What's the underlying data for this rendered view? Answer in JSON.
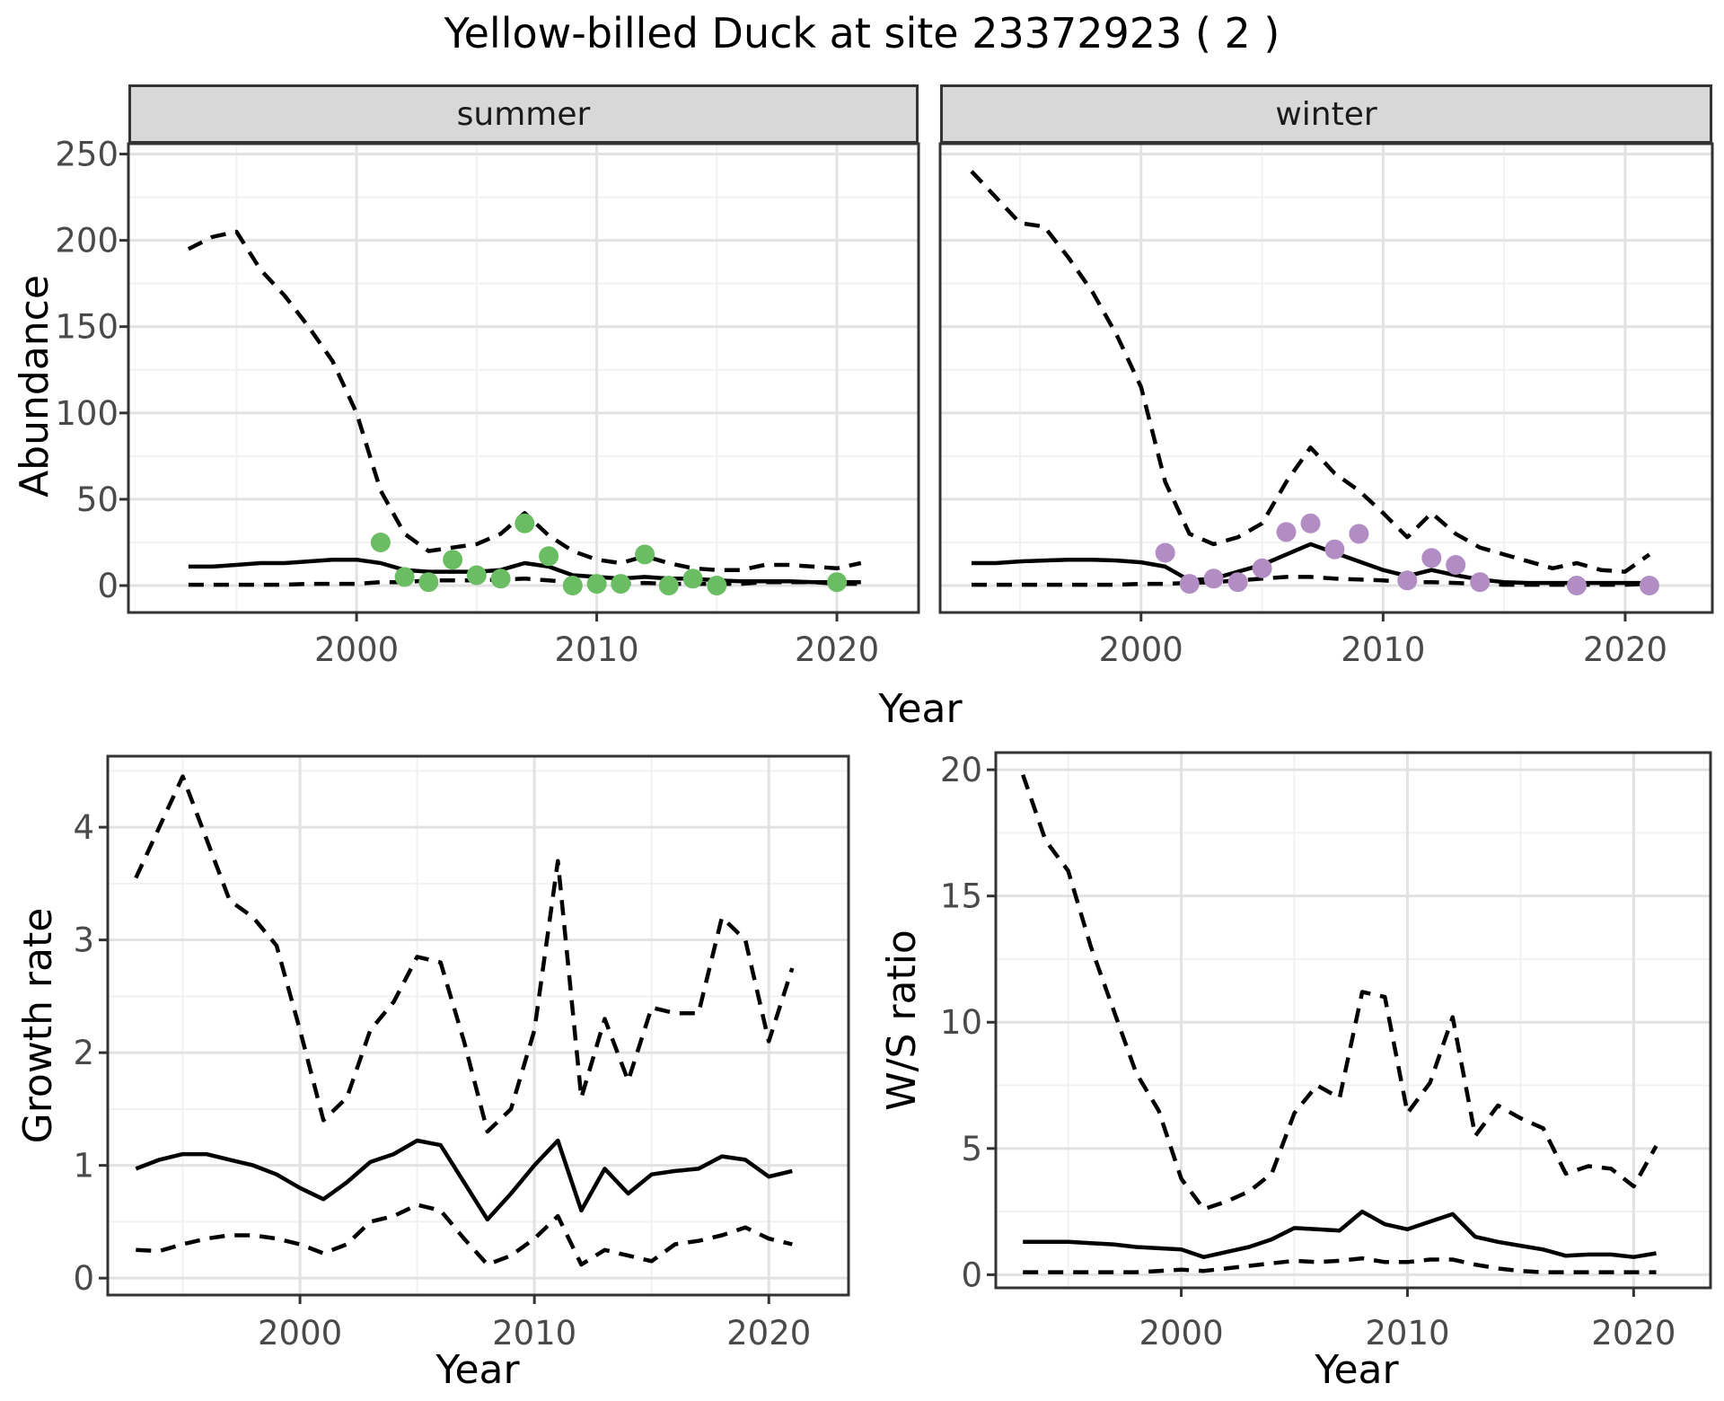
{
  "title": "Yellow-billed Duck at site 23372923 ( 2 )",
  "facets": [
    "summer",
    "winter"
  ],
  "axis_titles": {
    "abundance": "Abundance",
    "year_top": "Year",
    "growth_rate": "Growth rate",
    "year_bottom_left": "Year",
    "ws_ratio": "W/S ratio",
    "year_bottom_right": "Year"
  },
  "colors": {
    "summer_points": "#6bbd63",
    "winter_points": "#b28dc3",
    "line": "#000000",
    "grid_major": "#e2e2e2",
    "grid_minor": "#f1f1f1",
    "panel_border": "#333333",
    "strip_bg": "#d8d8d8",
    "tick_text": "#4a4a4a"
  },
  "chart_data": [
    {
      "id": "abundance_summer",
      "type": "line",
      "title": "summer",
      "xlabel": "Year",
      "ylabel": "Abundance",
      "x_ticks": [
        2000,
        2010,
        2020
      ],
      "x_minor": [
        1995,
        2005,
        2015
      ],
      "y_ticks": [
        0,
        50,
        100,
        150,
        200,
        250
      ],
      "y_minor": [
        25,
        75,
        125,
        175,
        225
      ],
      "xlim": [
        1990.5,
        2023.4
      ],
      "ylim": [
        -15.6,
        256
      ],
      "years": [
        1993,
        1994,
        1995,
        1996,
        1997,
        1998,
        1999,
        2000,
        2001,
        2002,
        2003,
        2004,
        2005,
        2006,
        2007,
        2008,
        2009,
        2010,
        2011,
        2012,
        2013,
        2014,
        2015,
        2016,
        2017,
        2018,
        2019,
        2020,
        2021
      ],
      "series": [
        {
          "name": "upper_ci",
          "style": "dashed",
          "values": [
            195,
            202,
            205,
            183,
            168,
            150,
            130,
            100,
            55,
            30,
            20,
            22,
            24,
            30,
            42,
            29,
            20,
            15,
            13,
            17,
            13,
            10,
            9,
            9,
            12,
            12,
            11,
            10,
            13
          ]
        },
        {
          "name": "mean",
          "style": "solid",
          "values": [
            11,
            11,
            12,
            13,
            13,
            14,
            15,
            15,
            13,
            9,
            8,
            8,
            8,
            9,
            13,
            11,
            6,
            5,
            4,
            5,
            4,
            4,
            3,
            2.5,
            2.5,
            2.5,
            2,
            2,
            2
          ]
        },
        {
          "name": "lower_ci",
          "style": "dashed",
          "values": [
            0.5,
            0.5,
            0.5,
            0.5,
            0.5,
            1,
            1,
            1,
            2,
            2,
            3,
            3,
            3,
            3.5,
            4,
            3,
            2,
            1,
            1,
            1.5,
            1,
            1,
            1,
            1,
            2,
            2,
            2,
            1,
            1
          ]
        }
      ],
      "points": {
        "name": "observed_counts",
        "color_key": "summer_points",
        "years": [
          2001,
          2002,
          2003,
          2004,
          2005,
          2006,
          2007,
          2008,
          2009,
          2010,
          2011,
          2012,
          2013,
          2014,
          2015,
          2020
        ],
        "values": [
          25,
          5,
          2,
          15,
          6,
          4,
          36,
          17,
          0,
          1,
          1,
          18,
          0,
          4,
          0,
          2
        ]
      }
    },
    {
      "id": "abundance_winter",
      "type": "line",
      "title": "winter",
      "xlabel": "Year",
      "ylabel": "Abundance",
      "x_ticks": [
        2000,
        2010,
        2020
      ],
      "x_minor": [
        1995,
        2005,
        2015
      ],
      "y_ticks": [
        0,
        50,
        100,
        150,
        200,
        250
      ],
      "y_minor": [
        25,
        75,
        125,
        175,
        225
      ],
      "xlim": [
        1991.7,
        2023.6
      ],
      "ylim": [
        -15.6,
        256
      ],
      "years": [
        1993,
        1994,
        1995,
        1996,
        1997,
        1998,
        1999,
        2000,
        2001,
        2002,
        2003,
        2004,
        2005,
        2006,
        2007,
        2008,
        2009,
        2010,
        2011,
        2012,
        2013,
        2014,
        2015,
        2016,
        2017,
        2018,
        2019,
        2020,
        2021
      ],
      "series": [
        {
          "name": "upper_ci",
          "style": "dashed",
          "values": [
            240,
            225,
            210,
            208,
            190,
            170,
            145,
            115,
            60,
            30,
            24,
            28,
            36,
            60,
            80,
            65,
            55,
            42,
            28,
            42,
            30,
            22,
            18,
            14,
            10,
            13,
            9,
            8,
            18
          ]
        },
        {
          "name": "mean",
          "style": "solid",
          "values": [
            13,
            13,
            14,
            14.5,
            15,
            15,
            14.5,
            13.5,
            11,
            3,
            4,
            8,
            12,
            18,
            24,
            19,
            14,
            9,
            5.5,
            9,
            6,
            3.5,
            2,
            1.5,
            1.5,
            1.5,
            1.5,
            1.5,
            1.5
          ]
        },
        {
          "name": "lower_ci",
          "style": "dashed",
          "values": [
            0.5,
            0.5,
            0.5,
            0.5,
            0.5,
            0.5,
            0.5,
            1,
            1,
            1.5,
            2,
            3,
            4,
            5,
            5,
            4,
            3.5,
            3,
            2,
            2,
            1.5,
            1,
            0.5,
            0.5,
            0.5,
            0.5,
            0.5,
            0.5,
            1
          ]
        }
      ],
      "points": {
        "name": "observed_counts",
        "color_key": "winter_points",
        "years": [
          2001,
          2002,
          2003,
          2004,
          2005,
          2006,
          2007,
          2008,
          2009,
          2011,
          2012,
          2013,
          2014,
          2018,
          2021
        ],
        "values": [
          19,
          1,
          4,
          2,
          10,
          31,
          36,
          21,
          30,
          3,
          16,
          12,
          2,
          0,
          0
        ]
      }
    },
    {
      "id": "growth_rate",
      "type": "line",
      "title": "",
      "xlabel": "Year",
      "ylabel": "Growth rate",
      "x_ticks": [
        2000,
        2010,
        2020
      ],
      "x_minor": [
        1995,
        2005,
        2015
      ],
      "y_ticks": [
        0,
        1,
        2,
        3,
        4
      ],
      "y_minor": [
        0.5,
        1.5,
        2.5,
        3.5,
        4.5
      ],
      "xlim": [
        1991.8,
        2023.4
      ],
      "ylim": [
        -0.15,
        4.63
      ],
      "years": [
        1993,
        1994,
        1995,
        1996,
        1997,
        1998,
        1999,
        2000,
        2001,
        2002,
        2003,
        2004,
        2005,
        2006,
        2007,
        2008,
        2009,
        2010,
        2011,
        2012,
        2013,
        2014,
        2015,
        2016,
        2017,
        2018,
        2019,
        2020,
        2021
      ],
      "series": [
        {
          "name": "upper_ci",
          "style": "dashed",
          "values": [
            3.55,
            4.0,
            4.45,
            3.9,
            3.35,
            3.2,
            2.95,
            2.2,
            1.4,
            1.6,
            2.2,
            2.45,
            2.85,
            2.8,
            2.1,
            1.3,
            1.5,
            2.2,
            3.7,
            1.6,
            2.3,
            1.75,
            2.4,
            2.35,
            2.35,
            3.2,
            3.0,
            2.1,
            2.75
          ]
        },
        {
          "name": "mean",
          "style": "solid",
          "values": [
            0.97,
            1.05,
            1.1,
            1.1,
            1.05,
            1.0,
            0.92,
            0.8,
            0.7,
            0.85,
            1.03,
            1.1,
            1.22,
            1.18,
            0.85,
            0.52,
            0.75,
            1.0,
            1.22,
            0.6,
            0.97,
            0.75,
            0.92,
            0.95,
            0.97,
            1.08,
            1.05,
            0.9,
            0.95
          ]
        },
        {
          "name": "lower_ci",
          "style": "dashed",
          "values": [
            0.25,
            0.24,
            0.3,
            0.35,
            0.38,
            0.38,
            0.35,
            0.3,
            0.22,
            0.3,
            0.5,
            0.55,
            0.65,
            0.6,
            0.35,
            0.12,
            0.2,
            0.35,
            0.55,
            0.12,
            0.25,
            0.2,
            0.15,
            0.3,
            0.33,
            0.38,
            0.45,
            0.35,
            0.3
          ]
        }
      ]
    },
    {
      "id": "ws_ratio",
      "type": "line",
      "title": "",
      "xlabel": "Year",
      "ylabel": "W/S ratio",
      "x_ticks": [
        2000,
        2010,
        2020
      ],
      "x_minor": [
        1995,
        2005,
        2015
      ],
      "y_ticks": [
        0,
        5,
        10,
        15,
        20
      ],
      "y_minor": [
        2.5,
        7.5,
        12.5,
        17.5
      ],
      "xlim": [
        1991.8,
        2023.4
      ],
      "ylim": [
        -0.52,
        20.68
      ],
      "years": [
        1993,
        1994,
        1995,
        1996,
        1997,
        1998,
        1999,
        2000,
        2001,
        2002,
        2003,
        2004,
        2005,
        2006,
        2007,
        2008,
        2009,
        2010,
        2011,
        2012,
        2013,
        2014,
        2015,
        2016,
        2017,
        2018,
        2019,
        2020,
        2021
      ],
      "series": [
        {
          "name": "upper_ci",
          "style": "dashed",
          "values": [
            19.8,
            17.2,
            16.0,
            13.0,
            10.5,
            8.0,
            6.5,
            3.8,
            2.6,
            2.9,
            3.3,
            4.0,
            6.4,
            7.5,
            7.0,
            11.2,
            11.0,
            6.4,
            7.6,
            10.2,
            5.5,
            6.7,
            6.2,
            5.8,
            4.0,
            4.3,
            4.2,
            3.5,
            5.1
          ]
        },
        {
          "name": "mean",
          "style": "solid",
          "values": [
            1.3,
            1.3,
            1.3,
            1.25,
            1.2,
            1.1,
            1.05,
            1.0,
            0.7,
            0.9,
            1.1,
            1.4,
            1.85,
            1.8,
            1.75,
            2.5,
            2.0,
            1.8,
            2.1,
            2.4,
            1.5,
            1.3,
            1.15,
            1.0,
            0.75,
            0.8,
            0.8,
            0.7,
            0.85
          ]
        },
        {
          "name": "lower_ci",
          "style": "dashed",
          "values": [
            0.1,
            0.1,
            0.1,
            0.1,
            0.1,
            0.1,
            0.15,
            0.2,
            0.15,
            0.25,
            0.35,
            0.45,
            0.55,
            0.5,
            0.55,
            0.65,
            0.5,
            0.5,
            0.6,
            0.6,
            0.4,
            0.25,
            0.15,
            0.1,
            0.1,
            0.1,
            0.1,
            0.1,
            0.1
          ]
        }
      ]
    }
  ]
}
